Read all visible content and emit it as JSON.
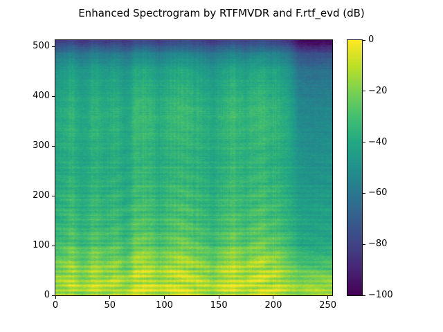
{
  "title": "Enhanced Spectrogram by RTFMVDR and F.rtf_evd (dB)",
  "chart_data": {
    "type": "heatmap",
    "title": "Enhanced Spectrogram by RTFMVDR and F.rtf_evd (dB)",
    "xlabel": "",
    "ylabel": "",
    "colormap": "viridis",
    "value_unit": "dB",
    "value_range_db": [
      -100,
      0
    ],
    "x_axis": {
      "range": [
        0,
        254
      ],
      "tick_values": [
        0,
        50,
        100,
        150,
        200,
        250
      ],
      "tick_labels": [
        "0",
        "50",
        "100",
        "150",
        "200",
        "250"
      ]
    },
    "y_axis": {
      "range": [
        0,
        513
      ],
      "tick_values": [
        0,
        100,
        200,
        300,
        400,
        500
      ],
      "tick_labels": [
        "0",
        "100",
        "200",
        "300",
        "400",
        "500"
      ]
    },
    "colorbar": {
      "min_db": -100,
      "max_db": 0,
      "tick_values": [
        0,
        -20,
        -40,
        -60,
        -80,
        -100
      ],
      "tick_labels": [
        "0",
        "−20",
        "−40",
        "−60",
        "−80",
        "−100"
      ]
    },
    "colormap_stops": [
      "#440154",
      "#482475",
      "#414487",
      "#355f8d",
      "#2a788e",
      "#21918c",
      "#22a884",
      "#44bf70",
      "#7ad151",
      "#bddf26",
      "#fde725"
    ],
    "grid": {
      "description": "Coarse dB grid sampled from the spectrogram; rows ordered bottom (low frequency bin) to top (high frequency bin), columns left to right in time frames.",
      "frame_centers": [
        5,
        15,
        25,
        35,
        45,
        55,
        65,
        75,
        85,
        95,
        105,
        115,
        125,
        135,
        145,
        155,
        165,
        175,
        185,
        195,
        205,
        215,
        225,
        235,
        245,
        255
      ],
      "bin_centers": [
        21,
        64,
        107,
        150,
        193,
        236,
        279,
        322,
        365,
        408,
        451,
        494
      ],
      "levels_db": [
        [
          -14,
          -9,
          -16,
          -9,
          -13,
          -10,
          -16,
          -7,
          -8,
          -12,
          -9,
          -6,
          -9,
          -11,
          -15,
          -9,
          -7,
          -11,
          -7,
          -8,
          -9,
          -14,
          -18,
          -15,
          -15,
          -14
        ],
        [
          -23,
          -15,
          -26,
          -16,
          -22,
          -18,
          -26,
          -12,
          -13,
          -20,
          -15,
          -11,
          -15,
          -19,
          -24,
          -16,
          -12,
          -19,
          -12,
          -13,
          -16,
          -23,
          -30,
          -31,
          -31,
          -30
        ],
        [
          -32,
          -26,
          -34,
          -27,
          -31,
          -28,
          -34,
          -23,
          -24,
          -30,
          -26,
          -22,
          -26,
          -29,
          -33,
          -27,
          -23,
          -29,
          -23,
          -24,
          -27,
          -32,
          -40,
          -41,
          -41,
          -40
        ],
        [
          -36,
          -30,
          -37,
          -31,
          -35,
          -32,
          -37,
          -28,
          -29,
          -34,
          -30,
          -27,
          -30,
          -33,
          -36,
          -31,
          -28,
          -33,
          -28,
          -29,
          -31,
          -36,
          -42,
          -43,
          -43,
          -42
        ],
        [
          -37,
          -32,
          -39,
          -33,
          -37,
          -34,
          -39,
          -31,
          -31,
          -36,
          -32,
          -30,
          -32,
          -35,
          -38,
          -33,
          -31,
          -35,
          -31,
          -31,
          -33,
          -37,
          -45,
          -45,
          -45,
          -45
        ],
        [
          -39,
          -34,
          -40,
          -35,
          -38,
          -36,
          -40,
          -32,
          -33,
          -37,
          -34,
          -32,
          -34,
          -36,
          -40,
          -35,
          -32,
          -36,
          -32,
          -33,
          -35,
          -39,
          -47,
          -48,
          -48,
          -47
        ],
        [
          -40,
          -36,
          -42,
          -37,
          -40,
          -37,
          -42,
          -34,
          -35,
          -39,
          -36,
          -34,
          -36,
          -38,
          -41,
          -37,
          -34,
          -38,
          -34,
          -35,
          -37,
          -40,
          -49,
          -50,
          -50,
          -49
        ],
        [
          -39,
          -34,
          -41,
          -35,
          -39,
          -36,
          -41,
          -33,
          -33,
          -38,
          -34,
          -32,
          -34,
          -37,
          -40,
          -35,
          -33,
          -37,
          -33,
          -33,
          -35,
          -39,
          -51,
          -52,
          -52,
          -51
        ],
        [
          -39,
          -33,
          -41,
          -34,
          -38,
          -35,
          -41,
          -31,
          -32,
          -37,
          -33,
          -30,
          -33,
          -36,
          -40,
          -34,
          -31,
          -36,
          -31,
          -32,
          -34,
          -39,
          -53,
          -54,
          -54,
          -53
        ],
        [
          -43,
          -37,
          -45,
          -38,
          -42,
          -39,
          -45,
          -35,
          -36,
          -41,
          -37,
          -34,
          -37,
          -40,
          -44,
          -38,
          -35,
          -40,
          -35,
          -36,
          -38,
          -43,
          -57,
          -58,
          -58,
          -57
        ],
        [
          -47,
          -41,
          -49,
          -42,
          -46,
          -43,
          -49,
          -39,
          -40,
          -45,
          -41,
          -38,
          -41,
          -44,
          -48,
          -42,
          -39,
          -44,
          -39,
          -40,
          -42,
          -47,
          -62,
          -63,
          -63,
          -62
        ],
        [
          -64,
          -59,
          -66,
          -60,
          -64,
          -61,
          -66,
          -58,
          -58,
          -63,
          -59,
          -57,
          -59,
          -62,
          -65,
          -60,
          -58,
          -62,
          -58,
          -58,
          -60,
          -64,
          -79,
          -80,
          -80,
          -79
        ]
      ]
    },
    "column_activity": [
      0.45,
      0.75,
      0.35,
      0.7,
      0.5,
      0.65,
      0.35,
      0.85,
      0.8,
      0.55,
      0.75,
      0.9,
      0.75,
      0.6,
      0.4,
      0.7,
      0.85,
      0.6,
      0.85,
      0.8,
      0.7,
      0.45,
      0.2,
      0.15,
      0.15,
      0.2
    ],
    "render": {
      "noise_db": 4.0,
      "line_noise_db": 2.5,
      "column_noise_db": 3.0,
      "harmonic_period_bins": 9.5,
      "harmonic_amp_db": 11,
      "harmonic_decay_bins": 130,
      "formant_period_bins": 34,
      "formant_amp_db": 5,
      "formant_decay_bins": 260,
      "top_fade_start_bin": 486,
      "top_fade_db": 20,
      "min_texture_activity": 0.35
    }
  }
}
